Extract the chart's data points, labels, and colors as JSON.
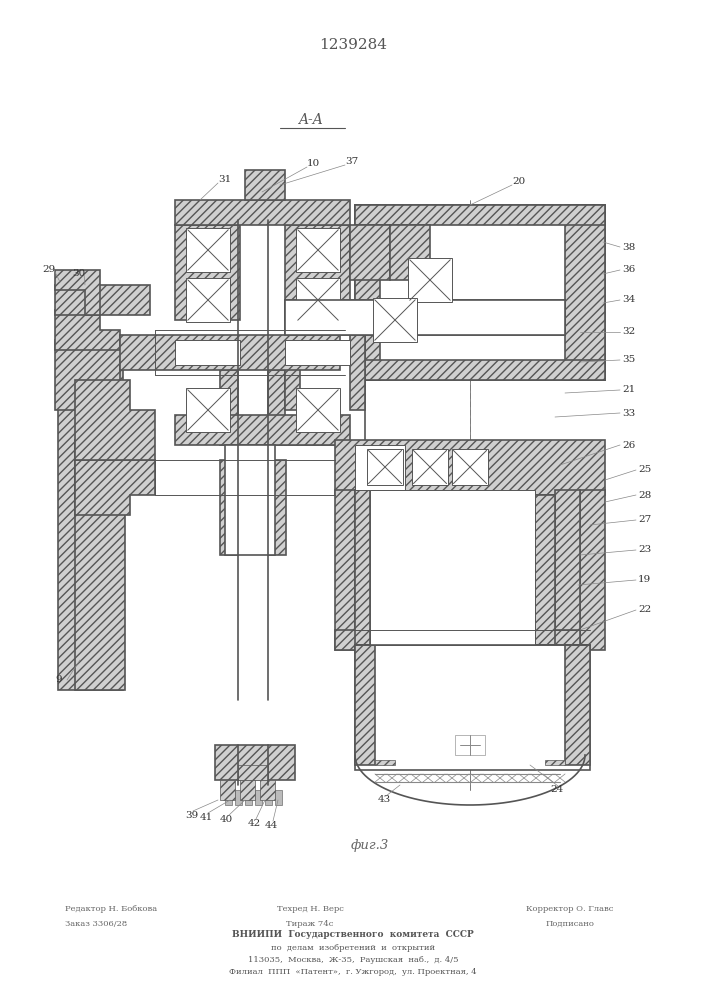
{
  "patent_number": "1239284",
  "section_label": "A-A",
  "figure_caption": "фиг.3",
  "bg_color": "#f5f5f0",
  "line_color": "#444444",
  "hatch_fc": "#c8c8c8",
  "footer": {
    "editor": "Редактор Н. Бобкова",
    "order": "Заказ 3306/28",
    "techred": "Техред Н. Верс",
    "tirazh": "Тираж 74с",
    "korrektor": "Корректор О. Главс",
    "podpisano": "Подписано",
    "vniiipi1": "ВНИИПИ  Государственного  комитета  СССР",
    "vniiipi2": "по  делам  изобретений  и  открытий",
    "vniiipi3": "113035,  Москва,  Ж-35,  Раушская  наб.,  д. 4/5",
    "vniiipi4": "Филиал  ППП  «Патент»,  г. Ужгород,  ул. Проектная, 4"
  }
}
